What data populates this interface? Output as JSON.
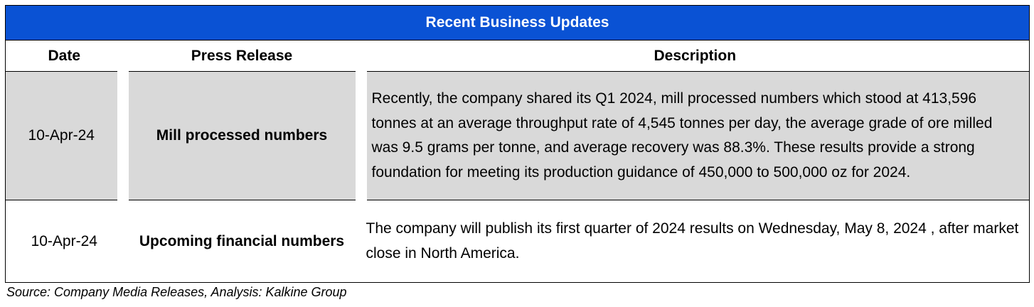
{
  "table": {
    "title": "Recent Business Updates",
    "headers": {
      "date": "Date",
      "press": "Press Release",
      "description": "Description"
    },
    "rows": [
      {
        "date": "10-Apr-24",
        "press": "Mill processed numbers",
        "description": "Recently, the company shared its Q1 2024, mill processed numbers which stood at 413,596 tonnes at an average throughput rate of 4,545 tonnes per day, the average grade of ore milled was 9.5 grams per tonne, and average recovery was 88.3%. These results provide a strong foundation for meeting its production guidance of 450,000 to 500,000 oz for 2024."
      },
      {
        "date": "10-Apr-24",
        "press": "Upcoming financial numbers",
        "description": "The company will publish its first quarter of 2024 results on Wednesday, May 8, 2024 , after market close in North America."
      }
    ]
  },
  "source": "Source: Company Media Releases, Analysis: Kalkine Group",
  "colors": {
    "header_bg": "#0a52d4",
    "row_shade": "#d9d9d9"
  }
}
